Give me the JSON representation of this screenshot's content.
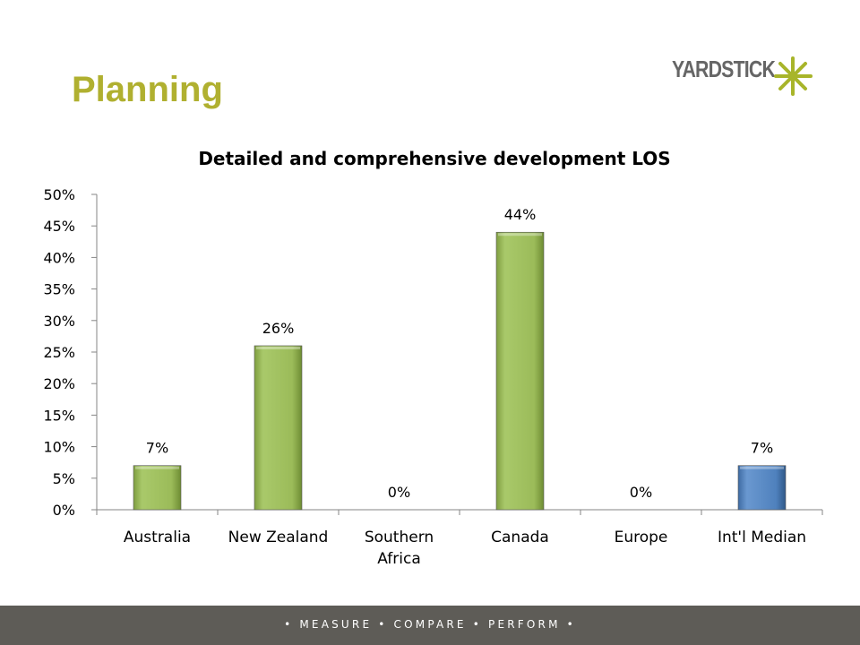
{
  "slide": {
    "title": "Planning",
    "logo_text": "YARDSTICK",
    "footer": "• MEASURE • COMPARE • PERFORM •"
  },
  "colors": {
    "title": "#b0b030",
    "bar_region": "#9bbb59",
    "bar_median": "#4f81bd",
    "footer_bg": "#5e5c57",
    "logo_star": "#a8b52a"
  },
  "chart_data": {
    "type": "bar",
    "title": "Detailed and comprehensive development LOS",
    "categories": [
      "Australia",
      "New Zealand",
      "Southern Africa",
      "Canada",
      "Europe",
      "Int'l Median"
    ],
    "category_lines": [
      [
        "Australia"
      ],
      [
        "New Zealand"
      ],
      [
        "Southern",
        "Africa"
      ],
      [
        "Canada"
      ],
      [
        "Europe"
      ],
      [
        "Int'l Median"
      ]
    ],
    "values": [
      7,
      26,
      0,
      44,
      0,
      7
    ],
    "data_labels": [
      "7%",
      "26%",
      "0%",
      "44%",
      "0%",
      "7%"
    ],
    "bar_colors": [
      "#9bbb59",
      "#9bbb59",
      "#9bbb59",
      "#9bbb59",
      "#9bbb59",
      "#4f81bd"
    ],
    "ylim": [
      0,
      50
    ],
    "yticks": [
      0,
      5,
      10,
      15,
      20,
      25,
      30,
      35,
      40,
      45,
      50
    ],
    "ytick_labels": [
      "0%",
      "5%",
      "10%",
      "15%",
      "20%",
      "25%",
      "30%",
      "35%",
      "40%",
      "45%",
      "50%"
    ],
    "xlabel": "",
    "ylabel": "",
    "grid": false,
    "legend": "none"
  }
}
